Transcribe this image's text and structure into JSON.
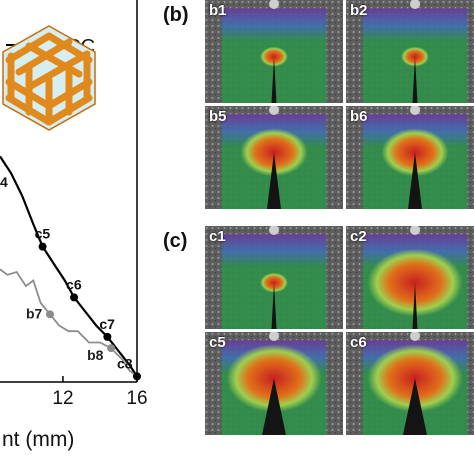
{
  "chart_data": {
    "type": "line",
    "title": "",
    "xlabel": "nt (mm)",
    "ylabel": "",
    "xlim": [
      8.6,
      16
    ],
    "ylim": [
      0,
      1
    ],
    "x_ticks": [
      12,
      16
    ],
    "x_tick_labels": [
      "12",
      "16"
    ],
    "legend": {
      "placement": "top-left",
      "entries": [
        "FCC"
      ]
    },
    "series": [
      {
        "name": "FCC",
        "color": "#000000",
        "x": [
          8.6,
          9.2,
          9.8,
          10.4,
          10.9,
          11.5,
          12.1,
          12.6,
          13.2,
          13.8,
          14.4,
          15.0,
          15.6,
          16.0
        ],
        "y": [
          0.8,
          0.74,
          0.66,
          0.56,
          0.48,
          0.42,
          0.36,
          0.3,
          0.25,
          0.2,
          0.16,
          0.11,
          0.06,
          0.02
        ]
      },
      {
        "name": "",
        "color": "#8c8c8c",
        "x": [
          8.6,
          9.0,
          9.5,
          10.0,
          10.4,
          10.8,
          11.3,
          11.8,
          12.3,
          12.8,
          13.4,
          14.0,
          14.6,
          15.2,
          15.6,
          16.0
        ],
        "y": [
          0.4,
          0.38,
          0.39,
          0.34,
          0.36,
          0.28,
          0.24,
          0.2,
          0.18,
          0.18,
          0.14,
          0.14,
          0.12,
          0.08,
          0.04,
          0.02
        ]
      }
    ],
    "markers": [
      {
        "label": "c5",
        "series": 0,
        "x": 10.9,
        "y": 0.48
      },
      {
        "label": "c6",
        "series": 0,
        "x": 12.6,
        "y": 0.3
      },
      {
        "label": "c7",
        "series": 0,
        "x": 14.4,
        "y": 0.16
      },
      {
        "label": "c8",
        "series": 0,
        "x": 16.0,
        "y": 0.02
      },
      {
        "label": "b7",
        "series": 1,
        "x": 11.3,
        "y": 0.24
      },
      {
        "label": "b8",
        "series": 1,
        "x": 14.6,
        "y": 0.12
      }
    ],
    "partial_label": "4"
  },
  "panels": {
    "b": {
      "label": "(b)",
      "tiles": [
        {
          "label": "b1",
          "crack": "short",
          "hot": "low"
        },
        {
          "label": "b2",
          "crack": "short",
          "hot": "low"
        },
        {
          "label": "b5",
          "crack": "open",
          "hot": "mid"
        },
        {
          "label": "b6",
          "crack": "open",
          "hot": "mid"
        }
      ]
    },
    "c": {
      "label": "(c)",
      "tiles": [
        {
          "label": "c1",
          "crack": "short",
          "hot": "low"
        },
        {
          "label": "c2",
          "crack": "short",
          "hot": "high"
        },
        {
          "label": "c5",
          "crack": "wide",
          "hot": "high"
        },
        {
          "label": "c6",
          "crack": "wide",
          "hot": "high"
        }
      ]
    }
  },
  "colors": {
    "speckle": "#6f6f6f",
    "strain_low": "#2f8f4a",
    "strain_mid": "#9fcf4f",
    "strain_high": "#c82020",
    "strain_top": "#6a3c9a"
  },
  "icons": [
    "fcc-lattice-icon"
  ]
}
